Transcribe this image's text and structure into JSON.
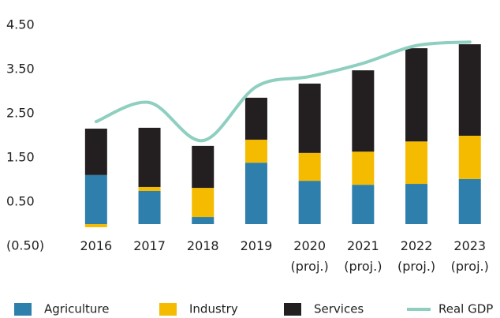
{
  "chart_data": {
    "type": "bar",
    "categories": [
      "2016",
      "2017",
      "2018",
      "2019",
      "2020 (proj.)",
      "2021 (proj.)",
      "2022 (proj.)",
      "2023 (proj.)"
    ],
    "series": [
      {
        "name": "Agriculture",
        "color": "#2e7fab",
        "values": [
          1.11,
          0.75,
          0.16,
          1.39,
          0.98,
          0.89,
          0.91,
          1.02
        ]
      },
      {
        "name": "Industry",
        "color": "#f5bb00",
        "values": [
          -0.07,
          0.09,
          0.66,
          0.52,
          0.63,
          0.75,
          0.96,
          0.98
        ]
      },
      {
        "name": "Services",
        "color": "#231f20",
        "values": [
          1.05,
          1.34,
          0.95,
          0.95,
          1.57,
          1.84,
          2.11,
          2.07
        ]
      },
      {
        "name": "Real GDP",
        "color": "#8ecfbf",
        "type": "line",
        "values": [
          2.32,
          2.75,
          1.89,
          3.11,
          3.34,
          3.64,
          4.04,
          4.12
        ]
      }
    ],
    "ylim": [
      -0.5,
      4.5
    ],
    "yticks": [
      {
        "value": 4.5,
        "label": "4.50"
      },
      {
        "value": 3.5,
        "label": "3.50"
      },
      {
        "value": 2.5,
        "label": "2.50"
      },
      {
        "value": 1.5,
        "label": "1.50"
      },
      {
        "value": 0.5,
        "label": "0.50"
      },
      {
        "value": -0.5,
        "label": "(0.50)"
      }
    ],
    "grid": false
  }
}
